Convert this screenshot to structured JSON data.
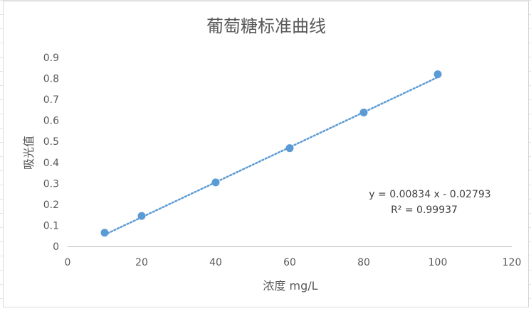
{
  "chart_data": {
    "type": "scatter",
    "title": "葡萄糖标准曲线",
    "xlabel": "浓度 mg/L",
    "ylabel": "吸光值",
    "xlim": [
      0,
      120
    ],
    "ylim": [
      0,
      0.9
    ],
    "x_ticks": [
      "0",
      "20",
      "40",
      "60",
      "80",
      "100",
      "120"
    ],
    "y_ticks": [
      "0",
      "0.1",
      "0.2",
      "0.3",
      "0.4",
      "0.5",
      "0.6",
      "0.7",
      "0.8",
      "0.9"
    ],
    "grid": false,
    "legend": "none",
    "series": [
      {
        "x": [
          10,
          20,
          40,
          60,
          80,
          100
        ],
        "y": [
          0.065,
          0.145,
          0.305,
          0.468,
          0.638,
          0.82
        ],
        "color": "#5b9bd5"
      }
    ],
    "trendline": {
      "type": "linear",
      "style": "dotted",
      "color": "#5b9bd5",
      "slope": 0.00834,
      "intercept": -0.02793,
      "x_range": [
        10,
        100
      ],
      "equation": "y = 0.00834 x - 0.02793",
      "r2_label": "R² = 0.99937"
    }
  }
}
